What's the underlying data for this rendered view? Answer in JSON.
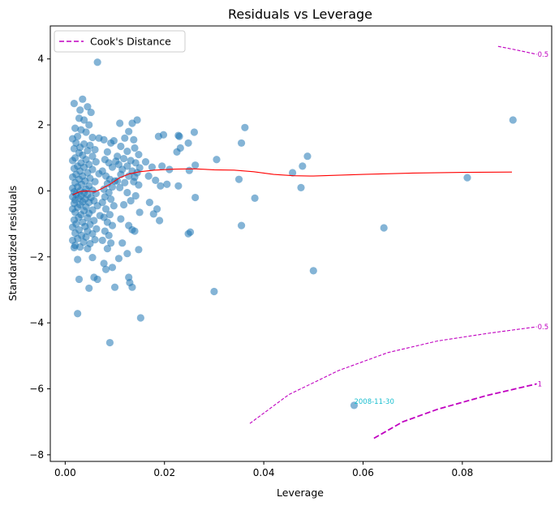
{
  "chart_data": {
    "type": "scatter",
    "title": "Residuals vs Leverage",
    "xlabel": "Leverage",
    "ylabel": "Standardized residuals",
    "xlim": [
      -0.003,
      0.098
    ],
    "ylim": [
      -8.2,
      5.0
    ],
    "xticks": [
      0.0,
      0.02,
      0.04,
      0.06,
      0.08
    ],
    "xtick_labels": [
      "0.00",
      "0.02",
      "0.04",
      "0.06",
      "0.08"
    ],
    "yticks": [
      -8,
      -6,
      -4,
      -2,
      0,
      2,
      4
    ],
    "ytick_labels": [
      "−8",
      "−6",
      "−4",
      "−2",
      "0",
      "2",
      "4"
    ],
    "grid": false,
    "legend": {
      "placement": "top-left",
      "entries": [
        "Cook's Distance"
      ]
    },
    "colors": {
      "points": "#1f77b4",
      "smooth": "#ff0000",
      "cooks": "#c000c0",
      "annotation": "#17becf"
    },
    "points": [
      [
        0.0065,
        3.9
      ],
      [
        0.0018,
        2.65
      ],
      [
        0.0035,
        2.78
      ],
      [
        0.0045,
        2.55
      ],
      [
        0.003,
        2.45
      ],
      [
        0.0052,
        2.38
      ],
      [
        0.0028,
        2.2
      ],
      [
        0.0038,
        2.15
      ],
      [
        0.0048,
        2.0
      ],
      [
        0.002,
        1.9
      ],
      [
        0.0032,
        1.85
      ],
      [
        0.0042,
        1.78
      ],
      [
        0.0025,
        1.65
      ],
      [
        0.0055,
        1.62
      ],
      [
        0.0015,
        1.58
      ],
      [
        0.0068,
        1.6
      ],
      [
        0.0022,
        1.45
      ],
      [
        0.0038,
        1.42
      ],
      [
        0.005,
        1.38
      ],
      [
        0.003,
        1.32
      ],
      [
        0.0018,
        1.28
      ],
      [
        0.0045,
        1.22
      ],
      [
        0.006,
        1.25
      ],
      [
        0.0028,
        1.15
      ],
      [
        0.0035,
        1.08
      ],
      [
        0.0055,
        1.05
      ],
      [
        0.002,
        1.0
      ],
      [
        0.0042,
        0.95
      ],
      [
        0.0015,
        0.92
      ],
      [
        0.0062,
        0.88
      ],
      [
        0.0032,
        0.85
      ],
      [
        0.0048,
        0.8
      ],
      [
        0.0025,
        0.75
      ],
      [
        0.0038,
        0.72
      ],
      [
        0.0018,
        0.68
      ],
      [
        0.0055,
        0.65
      ],
      [
        0.003,
        0.6
      ],
      [
        0.0045,
        0.55
      ],
      [
        0.0022,
        0.5
      ],
      [
        0.0068,
        0.52
      ],
      [
        0.0035,
        0.45
      ],
      [
        0.0015,
        0.42
      ],
      [
        0.005,
        0.38
      ],
      [
        0.0028,
        0.35
      ],
      [
        0.004,
        0.3
      ],
      [
        0.006,
        0.28
      ],
      [
        0.002,
        0.25
      ],
      [
        0.0033,
        0.2
      ],
      [
        0.0048,
        0.15
      ],
      [
        0.0025,
        0.12
      ],
      [
        0.0015,
        0.08
      ],
      [
        0.0042,
        0.05
      ],
      [
        0.0055,
        0.02
      ],
      [
        0.003,
        0.0
      ],
      [
        0.0018,
        -0.03
      ],
      [
        0.0038,
        -0.05
      ],
      [
        0.0062,
        -0.08
      ],
      [
        0.0022,
        -0.1
      ],
      [
        0.0045,
        -0.12
      ],
      [
        0.0032,
        -0.15
      ],
      [
        0.0015,
        -0.18
      ],
      [
        0.0052,
        -0.2
      ],
      [
        0.0027,
        -0.22
      ],
      [
        0.004,
        -0.25
      ],
      [
        0.002,
        -0.28
      ],
      [
        0.0058,
        -0.3
      ],
      [
        0.0035,
        -0.33
      ],
      [
        0.0048,
        -0.35
      ],
      [
        0.0018,
        -0.38
      ],
      [
        0.003,
        -0.42
      ],
      [
        0.0065,
        -0.45
      ],
      [
        0.0042,
        -0.48
      ],
      [
        0.0025,
        -0.5
      ],
      [
        0.0015,
        -0.55
      ],
      [
        0.0055,
        -0.58
      ],
      [
        0.0038,
        -0.6
      ],
      [
        0.002,
        -0.65
      ],
      [
        0.0048,
        -0.68
      ],
      [
        0.0032,
        -0.72
      ],
      [
        0.007,
        -0.75
      ],
      [
        0.0027,
        -0.8
      ],
      [
        0.0045,
        -0.82
      ],
      [
        0.0018,
        -0.88
      ],
      [
        0.0058,
        -0.9
      ],
      [
        0.0035,
        -0.95
      ],
      [
        0.0022,
        -1.0
      ],
      [
        0.005,
        -1.02
      ],
      [
        0.004,
        -1.08
      ],
      [
        0.0015,
        -1.1
      ],
      [
        0.0063,
        -1.15
      ],
      [
        0.0028,
        -1.18
      ],
      [
        0.0045,
        -1.22
      ],
      [
        0.002,
        -1.28
      ],
      [
        0.0055,
        -1.3
      ],
      [
        0.0033,
        -1.35
      ],
      [
        0.0042,
        -1.4
      ],
      [
        0.0025,
        -1.45
      ],
      [
        0.0015,
        -1.5
      ],
      [
        0.006,
        -1.48
      ],
      [
        0.0037,
        -1.55
      ],
      [
        0.005,
        -1.6
      ],
      [
        0.002,
        -1.65
      ],
      [
        0.003,
        -1.7
      ],
      [
        0.0045,
        -1.75
      ],
      [
        0.0018,
        -1.72
      ],
      [
        0.0025,
        -2.08
      ],
      [
        0.0055,
        -2.02
      ],
      [
        0.0028,
        -2.68
      ],
      [
        0.0058,
        -2.62
      ],
      [
        0.0065,
        -2.68
      ],
      [
        0.0048,
        -2.95
      ],
      [
        0.0025,
        -3.72
      ],
      [
        0.0078,
        1.55
      ],
      [
        0.0085,
        1.18
      ],
      [
        0.0092,
        1.45
      ],
      [
        0.0098,
        1.52
      ],
      [
        0.008,
        0.95
      ],
      [
        0.0088,
        0.85
      ],
      [
        0.0095,
        0.72
      ],
      [
        0.0075,
        0.6
      ],
      [
        0.0102,
        0.9
      ],
      [
        0.0082,
        0.45
      ],
      [
        0.009,
        0.35
      ],
      [
        0.0085,
        0.22
      ],
      [
        0.0095,
        0.12
      ],
      [
        0.0078,
        0.05
      ],
      [
        0.01,
        0.3
      ],
      [
        0.0088,
        -0.05
      ],
      [
        0.008,
        -0.18
      ],
      [
        0.0092,
        -0.25
      ],
      [
        0.0075,
        -0.35
      ],
      [
        0.0098,
        -0.45
      ],
      [
        0.0082,
        -0.55
      ],
      [
        0.009,
        -0.72
      ],
      [
        0.0078,
        -0.8
      ],
      [
        0.0085,
        -0.95
      ],
      [
        0.0095,
        -1.05
      ],
      [
        0.008,
        -1.22
      ],
      [
        0.0088,
        -1.35
      ],
      [
        0.0075,
        -1.5
      ],
      [
        0.0092,
        -1.58
      ],
      [
        0.0085,
        -1.75
      ],
      [
        0.0078,
        -2.2
      ],
      [
        0.0082,
        -2.38
      ],
      [
        0.0095,
        -2.32
      ],
      [
        0.01,
        -2.92
      ],
      [
        0.009,
        -4.6
      ],
      [
        0.011,
        2.05
      ],
      [
        0.0128,
        1.8
      ],
      [
        0.0135,
        2.05
      ],
      [
        0.0145,
        2.15
      ],
      [
        0.0138,
        1.55
      ],
      [
        0.012,
        1.6
      ],
      [
        0.0112,
        1.35
      ],
      [
        0.014,
        1.3
      ],
      [
        0.0125,
        1.2
      ],
      [
        0.0148,
        1.1
      ],
      [
        0.0105,
        1.05
      ],
      [
        0.0118,
        0.98
      ],
      [
        0.0132,
        0.92
      ],
      [
        0.0142,
        0.85
      ],
      [
        0.0108,
        0.8
      ],
      [
        0.0125,
        0.75
      ],
      [
        0.015,
        0.7
      ],
      [
        0.0115,
        0.65
      ],
      [
        0.0135,
        0.6
      ],
      [
        0.0145,
        0.55
      ],
      [
        0.0112,
        0.5
      ],
      [
        0.0128,
        0.45
      ],
      [
        0.014,
        0.42
      ],
      [
        0.0105,
        0.3
      ],
      [
        0.012,
        0.25
      ],
      [
        0.0138,
        0.28
      ],
      [
        0.0148,
        0.18
      ],
      [
        0.011,
        0.1
      ],
      [
        0.0125,
        -0.05
      ],
      [
        0.0142,
        -0.15
      ],
      [
        0.0132,
        -0.3
      ],
      [
        0.0118,
        -0.42
      ],
      [
        0.015,
        -0.65
      ],
      [
        0.0112,
        -0.85
      ],
      [
        0.0128,
        -1.05
      ],
      [
        0.014,
        -1.22
      ],
      [
        0.0135,
        -1.18
      ],
      [
        0.0115,
        -1.58
      ],
      [
        0.0148,
        -1.78
      ],
      [
        0.0125,
        -1.9
      ],
      [
        0.0108,
        -2.05
      ],
      [
        0.0128,
        -2.62
      ],
      [
        0.013,
        -2.78
      ],
      [
        0.0135,
        -2.92
      ],
      [
        0.0152,
        -3.85
      ],
      [
        0.0162,
        0.88
      ],
      [
        0.0175,
        0.72
      ],
      [
        0.0168,
        0.45
      ],
      [
        0.0182,
        0.32
      ],
      [
        0.017,
        -0.35
      ],
      [
        0.0185,
        -0.55
      ],
      [
        0.0178,
        -0.7
      ],
      [
        0.019,
        -0.9
      ],
      [
        0.0188,
        1.65
      ],
      [
        0.0198,
        1.7
      ],
      [
        0.0195,
        0.75
      ],
      [
        0.0192,
        0.15
      ],
      [
        0.0205,
        0.2
      ],
      [
        0.0228,
        1.68
      ],
      [
        0.023,
        1.65
      ],
      [
        0.0248,
        1.45
      ],
      [
        0.026,
        1.78
      ],
      [
        0.0225,
        1.18
      ],
      [
        0.0232,
        1.3
      ],
      [
        0.021,
        0.65
      ],
      [
        0.025,
        0.62
      ],
      [
        0.0262,
        0.78
      ],
      [
        0.0228,
        0.15
      ],
      [
        0.0262,
        -0.2
      ],
      [
        0.0248,
        -1.3
      ],
      [
        0.0252,
        -1.25
      ],
      [
        0.03,
        -3.05
      ],
      [
        0.0305,
        0.95
      ],
      [
        0.035,
        0.35
      ],
      [
        0.0355,
        1.45
      ],
      [
        0.0362,
        1.92
      ],
      [
        0.0355,
        -1.05
      ],
      [
        0.0382,
        -0.22
      ],
      [
        0.0458,
        0.55
      ],
      [
        0.0475,
        0.1
      ],
      [
        0.0478,
        0.75
      ],
      [
        0.0488,
        1.05
      ],
      [
        0.05,
        -2.42
      ],
      [
        0.0642,
        -1.12
      ],
      [
        0.081,
        0.4
      ],
      [
        0.0902,
        2.15
      ],
      [
        0.0582,
        -6.5
      ]
    ],
    "smooth_line": [
      [
        0.0015,
        -0.12
      ],
      [
        0.003,
        -0.02
      ],
      [
        0.0045,
        0.0
      ],
      [
        0.006,
        -0.03
      ],
      [
        0.0075,
        0.08
      ],
      [
        0.009,
        0.2
      ],
      [
        0.011,
        0.4
      ],
      [
        0.013,
        0.52
      ],
      [
        0.015,
        0.58
      ],
      [
        0.018,
        0.63
      ],
      [
        0.022,
        0.66
      ],
      [
        0.026,
        0.67
      ],
      [
        0.03,
        0.64
      ],
      [
        0.034,
        0.63
      ],
      [
        0.038,
        0.58
      ],
      [
        0.042,
        0.5
      ],
      [
        0.046,
        0.46
      ],
      [
        0.05,
        0.45
      ],
      [
        0.06,
        0.5
      ],
      [
        0.07,
        0.54
      ],
      [
        0.08,
        0.56
      ],
      [
        0.09,
        0.57
      ]
    ],
    "cooks_lines": [
      {
        "level": "0.5",
        "points": [
          [
            0.0872,
            4.38
          ],
          [
            0.09,
            4.3
          ],
          [
            0.0925,
            4.22
          ],
          [
            0.095,
            4.14
          ]
        ]
      },
      {
        "level": "0.5",
        "points": [
          [
            0.0372,
            -7.05
          ],
          [
            0.045,
            -6.18
          ],
          [
            0.055,
            -5.45
          ],
          [
            0.065,
            -4.9
          ],
          [
            0.075,
            -4.55
          ],
          [
            0.085,
            -4.32
          ],
          [
            0.095,
            -4.12
          ]
        ]
      },
      {
        "level": "1",
        "points": [
          [
            0.0622,
            -7.5
          ],
          [
            0.068,
            -7.0
          ],
          [
            0.075,
            -6.62
          ],
          [
            0.085,
            -6.2
          ],
          [
            0.095,
            -5.85
          ]
        ]
      }
    ],
    "annotations": [
      {
        "text": "2008-11-30",
        "x": 0.0582,
        "y": -6.45
      }
    ]
  }
}
